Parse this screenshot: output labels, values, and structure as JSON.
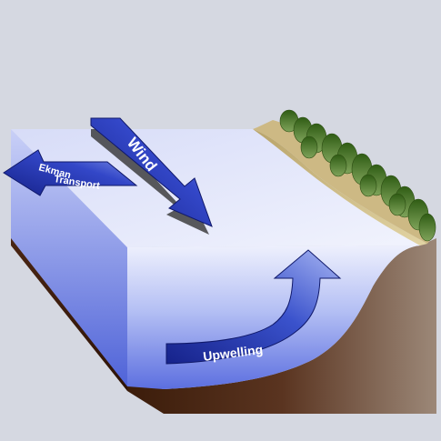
{
  "diagram": {
    "labels": {
      "wind": "Wind",
      "ekman_transport_line1": "Ekman",
      "ekman_transport_line2": "Transport",
      "upwelling": "Upwelling"
    },
    "colors": {
      "background": "#d5d8e1",
      "sea_surface": "#e9ecfb",
      "water_deep": "#5c6fe0",
      "water_shallow": "#eef0fd",
      "seafloor_dark": "#3b1c0a",
      "seafloor_light": "#9c8878",
      "beach": "#d2c08a",
      "vegetation": "#3f6f22",
      "arrow_dark": "#16228a",
      "arrow_light": "#8fa2ee"
    }
  }
}
